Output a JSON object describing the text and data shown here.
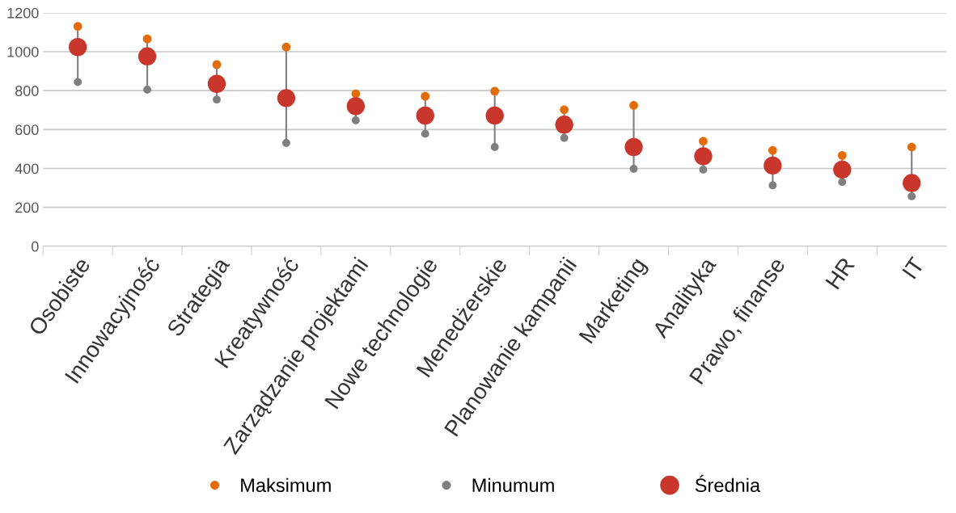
{
  "chart_data": {
    "type": "scatter",
    "categories": [
      "Osobiste",
      "Innowacyjność",
      "Strategia",
      "Kreatywność",
      "Zarządzanie projektami",
      "Nowe technologie",
      "Menedżerskie",
      "Planowanie kampanii",
      "Marketing",
      "Analityka",
      "Prawo, finanse",
      "HR",
      "IT"
    ],
    "series": [
      {
        "name": "Maksimum",
        "color": "#e36c0a",
        "values": [
          1130,
          1066,
          934,
          1024,
          784,
          771,
          797,
          702,
          724,
          540,
          493,
          467,
          510
        ]
      },
      {
        "name": "Minumum",
        "color": "#7f7f7f",
        "values": [
          844,
          805,
          754,
          531,
          647,
          578,
          510,
          557,
          398,
          394,
          313,
          330,
          257
        ]
      },
      {
        "name": "Średnia",
        "color": "#c9372c",
        "values": [
          1024,
          976,
          835,
          762,
          720,
          672,
          672,
          625,
          510,
          463,
          415,
          394,
          325
        ]
      }
    ],
    "ylim": [
      0,
      1200
    ],
    "yticks": [
      0,
      200,
      400,
      600,
      800,
      1000,
      1200
    ],
    "grid": "y",
    "legend": "bottom",
    "marker": "circle"
  }
}
